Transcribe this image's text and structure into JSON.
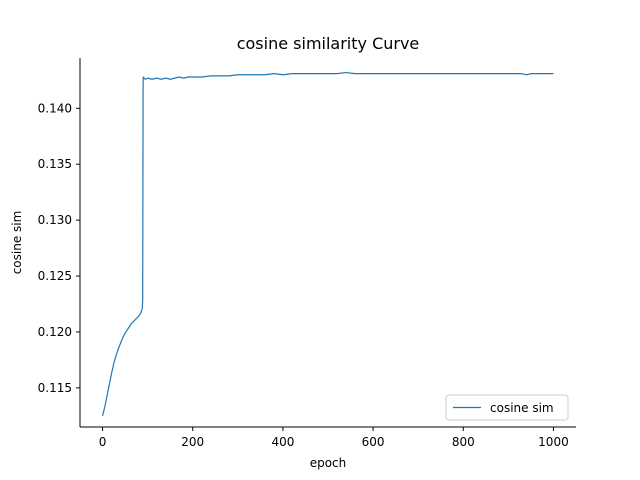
{
  "chart_data": {
    "type": "line",
    "title": "cosine similarity Curve",
    "xlabel": "epoch",
    "ylabel": "cosine sim",
    "xlim": [
      -50,
      1050
    ],
    "ylim": [
      0.1115,
      0.1445
    ],
    "xticks": [
      0,
      200,
      400,
      600,
      800,
      1000
    ],
    "xtick_labels": [
      "0",
      "200",
      "400",
      "600",
      "800",
      "1000"
    ],
    "yticks": [
      0.115,
      0.12,
      0.125,
      0.13,
      0.135,
      0.14
    ],
    "ytick_labels": [
      "0.115",
      "0.120",
      "0.125",
      "0.130",
      "0.135",
      "0.140"
    ],
    "grid": false,
    "legend_position": "lower-right",
    "series": [
      {
        "name": "cosine sim",
        "color": "#1f77b4",
        "x": [
          0,
          5,
          10,
          15,
          20,
          25,
          30,
          35,
          40,
          45,
          50,
          55,
          60,
          65,
          70,
          75,
          80,
          85,
          88,
          89,
          90,
          91,
          92,
          95,
          100,
          110,
          120,
          130,
          140,
          150,
          160,
          170,
          180,
          190,
          200,
          220,
          240,
          260,
          280,
          300,
          320,
          340,
          360,
          380,
          400,
          420,
          440,
          460,
          480,
          500,
          520,
          540,
          560,
          580,
          600,
          620,
          640,
          660,
          680,
          700,
          720,
          740,
          760,
          780,
          800,
          820,
          840,
          860,
          880,
          900,
          920,
          930,
          940,
          950,
          960,
          980,
          1000
        ],
        "values": [
          0.1125,
          0.1133,
          0.1143,
          0.1153,
          0.1163,
          0.1172,
          0.1179,
          0.1185,
          0.119,
          0.1195,
          0.1199,
          0.1202,
          0.1205,
          0.1208,
          0.121,
          0.1212,
          0.1214,
          0.1217,
          0.1221,
          0.1228,
          0.1427,
          0.1428,
          0.1427,
          0.1426,
          0.1427,
          0.1426,
          0.1427,
          0.1426,
          0.1427,
          0.1426,
          0.1427,
          0.1428,
          0.1427,
          0.1428,
          0.1428,
          0.1428,
          0.1429,
          0.1429,
          0.1429,
          0.143,
          0.143,
          0.143,
          0.143,
          0.1431,
          0.143,
          0.1431,
          0.1431,
          0.1431,
          0.1431,
          0.1431,
          0.1431,
          0.1432,
          0.1431,
          0.1431,
          0.1431,
          0.1431,
          0.1431,
          0.1431,
          0.1431,
          0.1431,
          0.1431,
          0.1431,
          0.1431,
          0.1431,
          0.1431,
          0.1431,
          0.1431,
          0.1431,
          0.1431,
          0.1431,
          0.1431,
          0.1431,
          0.143,
          0.1431,
          0.1431,
          0.1431,
          0.1431
        ]
      }
    ]
  }
}
